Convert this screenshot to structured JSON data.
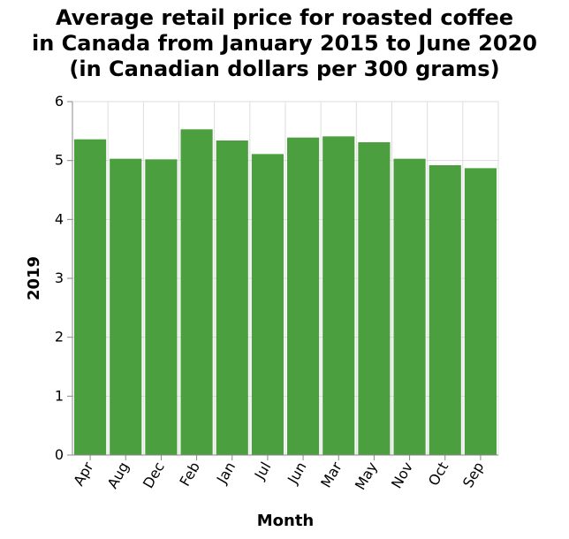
{
  "chart_data": {
    "type": "bar",
    "title_lines": [
      "Average retail price for roasted coffee",
      "in Canada from January 2015 to June 2020",
      "(in Canadian dollars per 300 grams)"
    ],
    "xlabel": "Month",
    "ylabel": "2019",
    "ylim": [
      0,
      6
    ],
    "yticks": [
      0,
      1,
      2,
      3,
      4,
      5,
      6
    ],
    "grid": true,
    "bar_color": "#4c9f3f",
    "categories": [
      "Apr",
      "Aug",
      "Dec",
      "Feb",
      "Jan",
      "Jul",
      "Jun",
      "Mar",
      "May",
      "Nov",
      "Oct",
      "Sep"
    ],
    "values": [
      5.36,
      5.03,
      5.02,
      5.53,
      5.34,
      5.11,
      5.39,
      5.41,
      5.31,
      5.03,
      4.92,
      4.87
    ]
  }
}
